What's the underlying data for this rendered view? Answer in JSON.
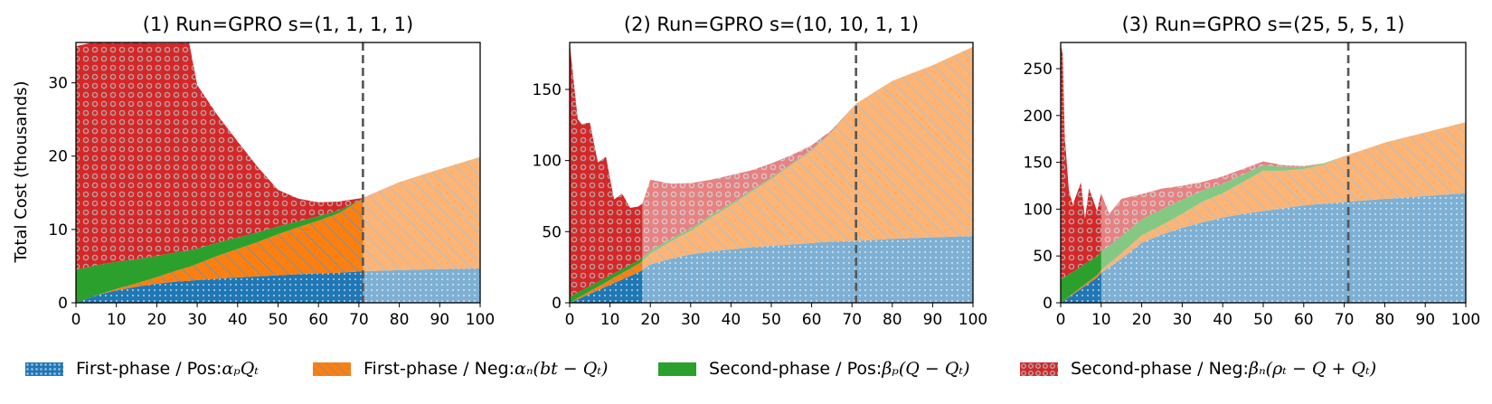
{
  "figure": {
    "ylabel": "Total Cost (thousands)"
  },
  "legend": [
    {
      "key": "fp",
      "text": "First-phase / Pos: ",
      "math": "αₚQₜ"
    },
    {
      "key": "fn",
      "text": "First-phase / Neg: ",
      "math": "αₙ(bt − Qₜ)"
    },
    {
      "key": "sp",
      "text": "Second-phase / Pos: ",
      "math": "βₚ(Q − Qₜ)"
    },
    {
      "key": "sn",
      "text": "Second-phase / Neg: ",
      "math": "βₙ(ρₜ − Q + Qₜ)"
    }
  ],
  "colors": {
    "first_phase_pos": "#1f77b4",
    "first_phase_neg": "#ff7f0e",
    "second_phase_pos": "#2ca02c",
    "second_phase_neg": "#d62728",
    "vline": "#555555"
  },
  "chart_data": [
    {
      "type": "area",
      "title": "(1) Run=GPRO s=(1, 1, 1, 1)",
      "xlabel": "",
      "ylabel": "Total Cost (thousands)",
      "xlim": [
        0,
        100
      ],
      "ylim": [
        0,
        35.5
      ],
      "xticks": [
        0,
        10,
        20,
        30,
        40,
        50,
        60,
        70,
        80,
        90,
        100
      ],
      "yticks": [
        0,
        10,
        20,
        30
      ],
      "vline": 71,
      "fade_after": 71,
      "x": [
        0,
        5,
        10,
        15,
        20,
        25,
        28,
        30,
        35,
        40,
        45,
        50,
        55,
        60,
        65,
        71,
        80,
        90,
        100
      ],
      "series": [
        {
          "name": "First-phase / Pos",
          "values": [
            0,
            1.0,
            1.7,
            2.2,
            2.6,
            2.9,
            3.0,
            3.1,
            3.3,
            3.45,
            3.6,
            3.75,
            3.9,
            4.0,
            4.1,
            4.3,
            4.45,
            4.6,
            4.7
          ]
        },
        {
          "name": "First-phase / Neg",
          "values": [
            0,
            0,
            0.2,
            0.45,
            0.9,
            1.5,
            1.9,
            2.2,
            3.1,
            3.9,
            4.7,
            5.6,
            6.4,
            7.2,
            8.1,
            9.9,
            12.0,
            13.6,
            15.2
          ]
        },
        {
          "name": "Second-phase / Pos",
          "values": [
            4.5,
            4.1,
            3.7,
            3.3,
            2.9,
            2.5,
            2.25,
            2.1,
            1.8,
            1.55,
            1.3,
            1.05,
            0.8,
            0.6,
            0.4,
            0,
            0,
            0,
            0
          ]
        },
        {
          "name": "Second-phase / Neg",
          "values": [
            30.5,
            30.5,
            30.0,
            29.5,
            29.0,
            28.5,
            28.3,
            22.3,
            17.4,
            13.1,
            8.9,
            5.0,
            3.1,
            1.9,
            1.2,
            0.1,
            0,
            0,
            0
          ]
        }
      ]
    },
    {
      "type": "area",
      "title": "(2) Run=GPRO s=(10, 10, 1, 1)",
      "xlabel": "",
      "ylabel": "",
      "xlim": [
        0,
        100
      ],
      "ylim": [
        0,
        183
      ],
      "xticks": [
        0,
        10,
        20,
        30,
        40,
        50,
        60,
        70,
        80,
        90,
        100
      ],
      "yticks": [
        0,
        50,
        100,
        150
      ],
      "vline": 71,
      "fade_after": 18,
      "x": [
        0,
        1,
        2,
        3,
        5,
        7,
        9,
        11,
        13,
        15,
        17,
        18,
        20,
        25,
        30,
        35,
        40,
        45,
        50,
        55,
        60,
        65,
        71,
        80,
        90,
        100
      ],
      "series": [
        {
          "name": "First-phase / Pos",
          "values": [
            0,
            1.2,
            2.5,
            3.8,
            6.3,
            8.8,
            11.3,
            13.8,
            16.3,
            18.8,
            21.3,
            23,
            27,
            31,
            34,
            36,
            37.5,
            39,
            40,
            41,
            42,
            43,
            43.5,
            45,
            46,
            47
          ]
        },
        {
          "name": "First-phase / Neg",
          "values": [
            0,
            0.4,
            0.8,
            1.1,
            1.8,
            2.5,
            3.2,
            3.9,
            4.6,
            5.3,
            6.0,
            6.4,
            7.5,
            12,
            16.5,
            24,
            31,
            39,
            47,
            56,
            65,
            77,
            96.5,
            111,
            121,
            133
          ]
        },
        {
          "name": "Second-phase / Pos",
          "values": [
            4.0,
            4.0,
            3.9,
            3.8,
            3.6,
            3.4,
            3.2,
            3.0,
            2.8,
            2.6,
            2.4,
            2.2,
            2.0,
            1.8,
            1.6,
            1.5,
            1.3,
            1.1,
            1.0,
            0.8,
            0.7,
            0.5,
            0,
            0,
            0,
            0
          ]
        },
        {
          "name": "Second-phase / Neg",
          "values": [
            179,
            150,
            122,
            117,
            115,
            84,
            85,
            52,
            53,
            40,
            38,
            38,
            50,
            39,
            32,
            25,
            20,
            14,
            10,
            6,
            3,
            1,
            0,
            0,
            0,
            0
          ]
        }
      ]
    },
    {
      "type": "area",
      "title": "(3) Run=GPRO s=(25, 5, 5, 1)",
      "xlabel": "",
      "ylabel": "",
      "xlim": [
        0,
        100
      ],
      "ylim": [
        0,
        278
      ],
      "xticks": [
        0,
        10,
        20,
        30,
        40,
        50,
        60,
        70,
        80,
        90,
        100
      ],
      "yticks": [
        0,
        50,
        100,
        150,
        200,
        250
      ],
      "vline": 71,
      "fade_after": 10,
      "x": [
        0,
        0.5,
        1,
        2,
        3,
        5,
        6,
        7,
        9,
        10,
        12,
        15,
        20,
        25,
        30,
        35,
        40,
        45,
        50,
        55,
        60,
        65,
        71,
        80,
        90,
        100
      ],
      "series": [
        {
          "name": "First-phase / Pos",
          "values": [
            0,
            1.5,
            3,
            6,
            9,
            15,
            18,
            21,
            27,
            32,
            38,
            47,
            64,
            73,
            80,
            86,
            91,
            95,
            98,
            101,
            104,
            106,
            108,
            111,
            114,
            117
          ]
        },
        {
          "name": "First-phase / Neg",
          "values": [
            0,
            0.1,
            0.3,
            0.6,
            0.9,
            1.5,
            1.8,
            2.1,
            2.7,
            3,
            4,
            6,
            8,
            10,
            15,
            22,
            26,
            34,
            43,
            40,
            39,
            42,
            50,
            60,
            68,
            76
          ]
        },
        {
          "name": "Second-phase / Pos",
          "values": [
            25,
            25,
            24,
            24,
            23,
            22,
            22,
            21,
            20,
            20,
            19,
            18,
            17,
            17,
            15,
            12,
            10,
            8,
            6,
            4,
            2,
            1,
            0,
            0,
            0,
            0
          ]
        },
        {
          "name": "Second-phase / Neg",
          "values": [
            250,
            240,
            150,
            90,
            72,
            90,
            48,
            78,
            48,
            62,
            34,
            40,
            27,
            22,
            15,
            9,
            8,
            6,
            4,
            2,
            1,
            0,
            0,
            0,
            0,
            0
          ]
        }
      ]
    }
  ]
}
